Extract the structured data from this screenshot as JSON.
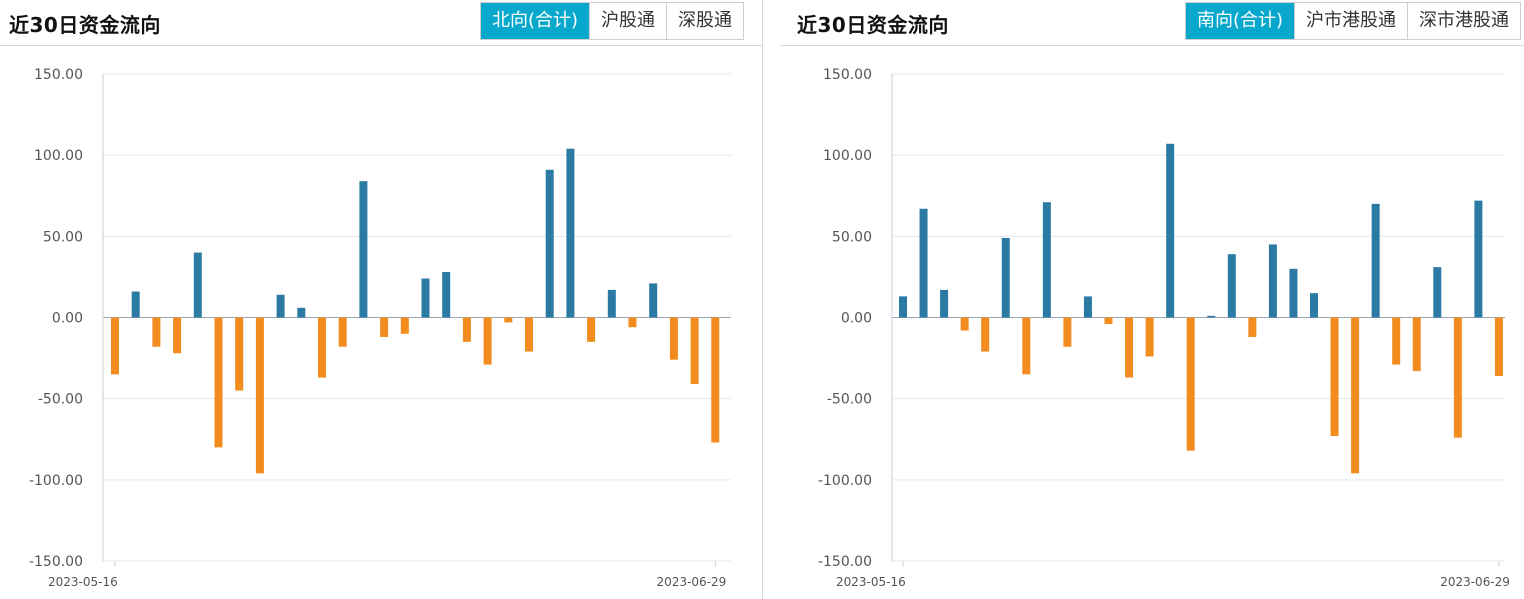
{
  "panels": [
    {
      "title": "近30日资金流向",
      "tabs": [
        {
          "label": "北向(合计)",
          "active": true
        },
        {
          "label": "沪股通",
          "active": false
        },
        {
          "label": "深股通",
          "active": false
        }
      ]
    },
    {
      "title": "近30日资金流向",
      "tabs": [
        {
          "label": "南向(合计)",
          "active": true
        },
        {
          "label": "沪市港股通",
          "active": false
        },
        {
          "label": "深市港股通",
          "active": false
        }
      ]
    }
  ],
  "colors": {
    "positive": "#2a7aa3",
    "negative": "#f28c1e",
    "grid": "#e3e8ee",
    "axis": "#c8d2dc",
    "active_tab": "#08a8cc"
  },
  "chart_data": [
    {
      "type": "bar",
      "title": "近30日资金流向",
      "xlabel": "",
      "ylabel": "",
      "ylim": [
        -150,
        150
      ],
      "yticks": [
        "150.00",
        "100.00",
        "50.00",
        "0.00",
        "-50.00",
        "-100.00",
        "-150.00"
      ],
      "x_tick_labels": [
        "2023-05-16",
        "2023-06-29"
      ],
      "grid": true,
      "values": [
        -35,
        16,
        -18,
        -22,
        40,
        -80,
        -45,
        -96,
        14,
        6,
        -37,
        -18,
        84,
        -12,
        -10,
        24,
        28,
        -15,
        -29,
        -3,
        -21,
        91,
        104,
        -15,
        17,
        -6,
        21,
        -26,
        -41,
        -77
      ]
    },
    {
      "type": "bar",
      "title": "近30日资金流向",
      "xlabel": "",
      "ylabel": "",
      "ylim": [
        -150,
        150
      ],
      "yticks": [
        "150.00",
        "100.00",
        "50.00",
        "0.00",
        "-50.00",
        "-100.00",
        "-150.00"
      ],
      "x_tick_labels": [
        "2023-05-16",
        "2023-06-29"
      ],
      "grid": true,
      "values": [
        13,
        67,
        17,
        -8,
        -21,
        49,
        -35,
        71,
        -18,
        13,
        -4,
        -37,
        -24,
        107,
        -82,
        1,
        39,
        -12,
        45,
        30,
        15,
        -73,
        -96,
        70,
        -29,
        -33,
        31,
        -74,
        72,
        -36
      ]
    }
  ]
}
